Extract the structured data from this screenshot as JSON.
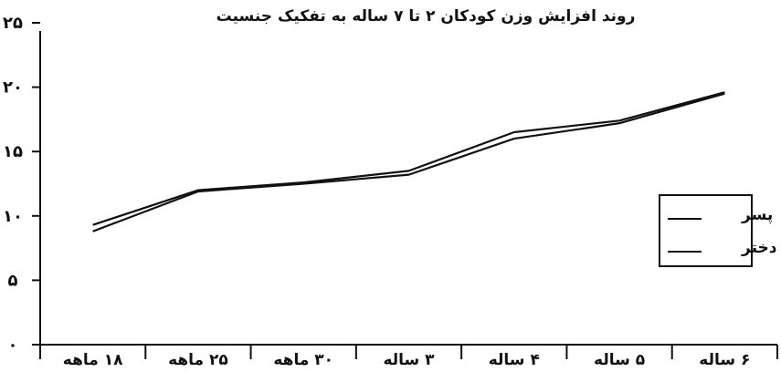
{
  "chart_data": {
    "type": "line",
    "title": "روند افزایش وزن کودکان ۲ تا ۷ ساله به تفکیک جنسیت",
    "xlabel": "",
    "ylabel": "",
    "ylim": [
      0,
      25
    ],
    "yticks": [
      0,
      5,
      10,
      15,
      20,
      25
    ],
    "ytick_labels": [
      "۰",
      "۵",
      "۱۰",
      "۱۵",
      "۲۰",
      "۲۵"
    ],
    "categories": [
      "۱۸ ماهه",
      "۲۵ ماهه",
      "۳۰ ماهه",
      "۳ ساله",
      "۴ ساله",
      "۵ ساله",
      "۶ ساله"
    ],
    "series": [
      {
        "name": "پسر",
        "values": [
          9.3,
          12.0,
          12.6,
          13.5,
          16.5,
          17.4,
          19.6
        ]
      },
      {
        "name": "دختر",
        "values": [
          8.8,
          11.9,
          12.5,
          13.2,
          16.0,
          17.2,
          19.5
        ]
      }
    ],
    "legend": "right",
    "grid": false,
    "colors": {
      "axis": "#111111",
      "line": "#111111",
      "text": "#111111",
      "background": "#ffffff"
    }
  }
}
